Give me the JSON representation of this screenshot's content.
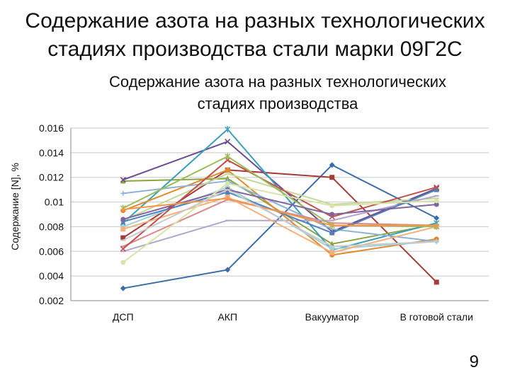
{
  "slide": {
    "title_line1": "Содержание азота на разных технологических",
    "title_line2": "стадиях производства стали марки 09Г2С",
    "page_number": "9"
  },
  "chart_data": {
    "type": "line",
    "title_line1": "Содержание азота на разных технологических",
    "title_line2": "стадиях производства",
    "ylabel": "Содержание [N], %",
    "xlabel": "",
    "categories": [
      "ДСП",
      "АКП",
      "Вакууматор",
      "В готовой стали"
    ],
    "ylim": [
      0.002,
      0.016
    ],
    "yticks": [
      "0.016",
      "0.014",
      "0.012",
      "0.01",
      "0.008",
      "0.006",
      "0.004",
      "0.002"
    ],
    "ytick_values": [
      0.016,
      0.014,
      0.012,
      0.01,
      0.008,
      0.006,
      0.004,
      0.002
    ],
    "grid": true,
    "legend": "none",
    "series": [
      {
        "color": "#3b6ea8",
        "marker": "diamond",
        "values": [
          0.003,
          0.0045,
          0.013,
          0.0087
        ]
      },
      {
        "color": "#a43a3a",
        "marker": "square",
        "values": [
          0.0071,
          0.0126,
          0.012,
          0.0035
        ]
      },
      {
        "color": "#8aa53f",
        "marker": "triangle",
        "values": [
          0.0117,
          0.0119,
          0.0066,
          0.0082
        ]
      },
      {
        "color": "#6a4c93",
        "marker": "x",
        "values": [
          0.0118,
          0.0149,
          0.0076,
          0.0111
        ]
      },
      {
        "color": "#3aa0b8",
        "marker": "star",
        "values": [
          0.0083,
          0.0159,
          0.0061,
          0.0083
        ]
      },
      {
        "color": "#e08a2c",
        "marker": "circle",
        "values": [
          0.0093,
          0.0126,
          0.0057,
          0.007
        ]
      },
      {
        "color": "#8db2d8",
        "marker": "plus",
        "values": [
          0.0107,
          0.0117,
          0.0078,
          0.0068
        ]
      },
      {
        "color": "#d88a8a",
        "marker": "dash",
        "values": [
          0.0064,
          0.0102,
          0.0083,
          0.0081
        ]
      },
      {
        "color": "#c5d89a",
        "marker": "dash",
        "values": [
          0.0085,
          0.0123,
          0.0098,
          0.0103
        ]
      },
      {
        "color": "#b3a6cc",
        "marker": "dash",
        "values": [
          0.006,
          0.0085,
          0.0085,
          0.0105
        ]
      },
      {
        "color": "#9ed3de",
        "marker": "diamond",
        "values": [
          0.008,
          0.0112,
          0.0062,
          0.0068
        ]
      },
      {
        "color": "#f3b07c",
        "marker": "square",
        "values": [
          0.0078,
          0.0104,
          0.0059,
          0.008
        ]
      },
      {
        "color": "#4f81bd",
        "marker": "triangle",
        "values": [
          0.0084,
          0.0108,
          0.0075,
          0.011
        ]
      },
      {
        "color": "#c0504d",
        "marker": "x",
        "values": [
          0.0062,
          0.0134,
          0.0088,
          0.0112
        ]
      },
      {
        "color": "#9bbb59",
        "marker": "star",
        "values": [
          0.0095,
          0.0137,
          0.0081,
          0.008
        ]
      },
      {
        "color": "#8064a2",
        "marker": "circle",
        "values": [
          0.0086,
          0.011,
          0.009,
          0.0098
        ]
      },
      {
        "color": "#f79646",
        "marker": "plus",
        "values": [
          0.0094,
          0.0103,
          0.0081,
          0.0081
        ]
      },
      {
        "color": "#d7e4a8",
        "marker": "circle",
        "values": [
          0.0051,
          0.0115,
          0.0097,
          0.0101
        ]
      },
      {
        "color": "#c9c9c9",
        "marker": "dash",
        "values": [
          0.0069,
          0.011,
          0.0064,
          0.0068
        ]
      }
    ]
  }
}
